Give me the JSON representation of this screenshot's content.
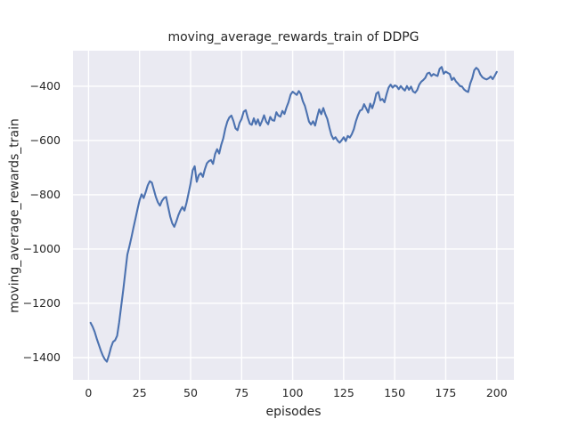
{
  "chart_data": {
    "type": "line",
    "title": "moving_average_rewards_train of DDPG",
    "xlabel": "episodes",
    "ylabel": "moving_average_rewards_train",
    "legend": "none",
    "grid": true,
    "x_ticks": [
      0,
      25,
      50,
      75,
      100,
      125,
      150,
      175,
      200
    ],
    "y_ticks": [
      -400,
      -600,
      -800,
      -1000,
      -1200,
      -1400
    ],
    "xlim": [
      -7.6,
      208.4
    ],
    "ylim": [
      -1482,
      -269
    ],
    "plot_bg_color": "#eaeaf2",
    "grid_color": "#ffffff",
    "line_color": "#4c72b0",
    "text_color": "#262626",
    "line_width": 2.1,
    "series": [
      {
        "name": "moving_average_rewards_train",
        "points": [
          [
            1,
            -1272
          ],
          [
            2,
            -1286
          ],
          [
            3,
            -1305
          ],
          [
            4,
            -1330
          ],
          [
            5,
            -1352
          ],
          [
            6,
            -1374
          ],
          [
            7,
            -1393
          ],
          [
            8,
            -1407
          ],
          [
            9,
            -1415
          ],
          [
            10,
            -1392
          ],
          [
            11,
            -1363
          ],
          [
            12,
            -1342
          ],
          [
            13,
            -1336
          ],
          [
            14,
            -1320
          ],
          [
            15,
            -1270
          ],
          [
            16,
            -1210
          ],
          [
            17,
            -1150
          ],
          [
            18,
            -1085
          ],
          [
            19,
            -1020
          ],
          [
            20,
            -990
          ],
          [
            21,
            -958
          ],
          [
            22,
            -922
          ],
          [
            23,
            -888
          ],
          [
            24,
            -853
          ],
          [
            25,
            -820
          ],
          [
            26,
            -798
          ],
          [
            27,
            -812
          ],
          [
            28,
            -790
          ],
          [
            29,
            -765
          ],
          [
            30,
            -750
          ],
          [
            31,
            -755
          ],
          [
            32,
            -782
          ],
          [
            33,
            -808
          ],
          [
            34,
            -828
          ],
          [
            35,
            -840
          ],
          [
            36,
            -822
          ],
          [
            37,
            -812
          ],
          [
            38,
            -808
          ],
          [
            39,
            -845
          ],
          [
            40,
            -880
          ],
          [
            41,
            -905
          ],
          [
            42,
            -918
          ],
          [
            43,
            -898
          ],
          [
            44,
            -875
          ],
          [
            45,
            -858
          ],
          [
            46,
            -845
          ],
          [
            47,
            -858
          ],
          [
            48,
            -830
          ],
          [
            49,
            -795
          ],
          [
            50,
            -758
          ],
          [
            51,
            -710
          ],
          [
            52,
            -695
          ],
          [
            53,
            -752
          ],
          [
            54,
            -728
          ],
          [
            55,
            -720
          ],
          [
            56,
            -734
          ],
          [
            57,
            -706
          ],
          [
            58,
            -684
          ],
          [
            59,
            -676
          ],
          [
            60,
            -672
          ],
          [
            61,
            -686
          ],
          [
            62,
            -650
          ],
          [
            63,
            -632
          ],
          [
            64,
            -648
          ],
          [
            65,
            -616
          ],
          [
            66,
            -592
          ],
          [
            67,
            -556
          ],
          [
            68,
            -530
          ],
          [
            69,
            -515
          ],
          [
            70,
            -508
          ],
          [
            71,
            -528
          ],
          [
            72,
            -555
          ],
          [
            73,
            -562
          ],
          [
            74,
            -535
          ],
          [
            75,
            -520
          ],
          [
            76,
            -494
          ],
          [
            77,
            -488
          ],
          [
            78,
            -516
          ],
          [
            79,
            -538
          ],
          [
            80,
            -542
          ],
          [
            81,
            -518
          ],
          [
            82,
            -540
          ],
          [
            83,
            -522
          ],
          [
            84,
            -545
          ],
          [
            85,
            -528
          ],
          [
            86,
            -507
          ],
          [
            87,
            -530
          ],
          [
            88,
            -540
          ],
          [
            89,
            -513
          ],
          [
            90,
            -525
          ],
          [
            91,
            -527
          ],
          [
            92,
            -496
          ],
          [
            93,
            -508
          ],
          [
            94,
            -512
          ],
          [
            95,
            -491
          ],
          [
            96,
            -502
          ],
          [
            97,
            -478
          ],
          [
            98,
            -458
          ],
          [
            99,
            -431
          ],
          [
            100,
            -420
          ],
          [
            101,
            -426
          ],
          [
            102,
            -432
          ],
          [
            103,
            -418
          ],
          [
            104,
            -428
          ],
          [
            105,
            -455
          ],
          [
            106,
            -472
          ],
          [
            107,
            -500
          ],
          [
            108,
            -530
          ],
          [
            109,
            -541
          ],
          [
            110,
            -529
          ],
          [
            111,
            -545
          ],
          [
            112,
            -513
          ],
          [
            113,
            -485
          ],
          [
            114,
            -503
          ],
          [
            115,
            -480
          ],
          [
            116,
            -503
          ],
          [
            117,
            -520
          ],
          [
            118,
            -552
          ],
          [
            119,
            -580
          ],
          [
            120,
            -595
          ],
          [
            121,
            -588
          ],
          [
            122,
            -600
          ],
          [
            123,
            -608
          ],
          [
            124,
            -599
          ],
          [
            125,
            -588
          ],
          [
            126,
            -602
          ],
          [
            127,
            -583
          ],
          [
            128,
            -589
          ],
          [
            129,
            -577
          ],
          [
            130,
            -558
          ],
          [
            131,
            -529
          ],
          [
            132,
            -507
          ],
          [
            133,
            -490
          ],
          [
            134,
            -486
          ],
          [
            135,
            -466
          ],
          [
            136,
            -481
          ],
          [
            137,
            -497
          ],
          [
            138,
            -464
          ],
          [
            139,
            -481
          ],
          [
            140,
            -458
          ],
          [
            141,
            -427
          ],
          [
            142,
            -421
          ],
          [
            143,
            -452
          ],
          [
            144,
            -447
          ],
          [
            145,
            -459
          ],
          [
            146,
            -430
          ],
          [
            147,
            -405
          ],
          [
            148,
            -394
          ],
          [
            149,
            -405
          ],
          [
            150,
            -397
          ],
          [
            151,
            -400
          ],
          [
            152,
            -411
          ],
          [
            153,
            -399
          ],
          [
            154,
            -409
          ],
          [
            155,
            -416
          ],
          [
            156,
            -399
          ],
          [
            157,
            -413
          ],
          [
            158,
            -401
          ],
          [
            159,
            -419
          ],
          [
            160,
            -424
          ],
          [
            161,
            -414
          ],
          [
            162,
            -394
          ],
          [
            163,
            -383
          ],
          [
            164,
            -377
          ],
          [
            165,
            -369
          ],
          [
            166,
            -353
          ],
          [
            167,
            -350
          ],
          [
            168,
            -362
          ],
          [
            169,
            -355
          ],
          [
            170,
            -359
          ],
          [
            171,
            -362
          ],
          [
            172,
            -336
          ],
          [
            173,
            -329
          ],
          [
            174,
            -354
          ],
          [
            175,
            -346
          ],
          [
            176,
            -351
          ],
          [
            177,
            -355
          ],
          [
            178,
            -377
          ],
          [
            179,
            -369
          ],
          [
            180,
            -382
          ],
          [
            181,
            -390
          ],
          [
            182,
            -399
          ],
          [
            183,
            -401
          ],
          [
            184,
            -412
          ],
          [
            185,
            -418
          ],
          [
            186,
            -421
          ],
          [
            187,
            -390
          ],
          [
            188,
            -370
          ],
          [
            189,
            -341
          ],
          [
            190,
            -332
          ],
          [
            191,
            -339
          ],
          [
            192,
            -357
          ],
          [
            193,
            -367
          ],
          [
            194,
            -372
          ],
          [
            195,
            -375
          ],
          [
            196,
            -371
          ],
          [
            197,
            -364
          ],
          [
            198,
            -374
          ],
          [
            199,
            -361
          ],
          [
            200,
            -347
          ]
        ]
      }
    ]
  }
}
